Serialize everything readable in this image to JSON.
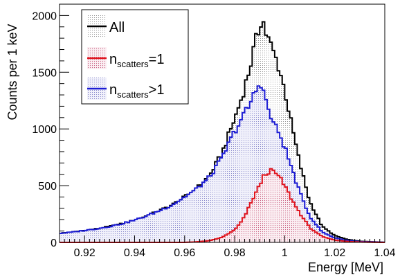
{
  "chart_data": {
    "type": "line",
    "xlabel": "Energy [MeV]",
    "ylabel": "Counts per 1 keV",
    "xlim": [
      0.91,
      1.04
    ],
    "ylim": [
      0,
      2100
    ],
    "x_ticks": [
      "0.92",
      "0.94",
      "0.96",
      "0.98",
      "1",
      "1.02",
      "1.04"
    ],
    "y_ticks": [
      "0",
      "500",
      "1000",
      "1500",
      "2000"
    ],
    "legend_position": "top-left",
    "grid": false,
    "x": [
      0.91,
      0.915,
      0.92,
      0.925,
      0.93,
      0.935,
      0.94,
      0.945,
      0.95,
      0.955,
      0.96,
      0.965,
      0.97,
      0.975,
      0.98,
      0.983,
      0.986,
      0.988,
      0.99,
      0.991,
      0.992,
      0.994,
      0.996,
      0.998,
      1.0,
      1.003,
      1.006,
      1.01,
      1.015,
      1.02,
      1.025,
      1.03,
      1.035,
      1.04
    ],
    "series": [
      {
        "name": "All",
        "color": "#000000",
        "values": [
          80,
          90,
          105,
          120,
          140,
          165,
          195,
          235,
          280,
          330,
          400,
          480,
          590,
          790,
          1090,
          1290,
          1530,
          1740,
          1900,
          2010,
          1870,
          1760,
          1650,
          1520,
          1340,
          1010,
          700,
          360,
          140,
          60,
          25,
          10,
          5,
          0
        ]
      },
      {
        "name": "n_scatters=1",
        "color": "#e0141e",
        "values": [
          0,
          0,
          0,
          0,
          0,
          0,
          0,
          0,
          0,
          0,
          0,
          5,
          15,
          45,
          110,
          190,
          320,
          420,
          500,
          560,
          600,
          630,
          620,
          570,
          500,
          370,
          260,
          130,
          50,
          20,
          8,
          3,
          1,
          0
        ]
      },
      {
        "name": "n_scatters>1",
        "color": "#1c1cd4",
        "values": [
          80,
          90,
          105,
          120,
          140,
          165,
          195,
          235,
          280,
          330,
          400,
          475,
          575,
          745,
          980,
          1100,
          1210,
          1320,
          1400,
          1420,
          1270,
          1130,
          1030,
          950,
          840,
          640,
          440,
          230,
          90,
          40,
          17,
          7,
          4,
          0
        ]
      }
    ],
    "legend": [
      {
        "main": "All",
        "sub": "",
        "tail": ""
      },
      {
        "main": "n",
        "sub": "scatters",
        "tail": "=1"
      },
      {
        "main": "n",
        "sub": "scatters",
        "tail": ">1"
      }
    ]
  }
}
